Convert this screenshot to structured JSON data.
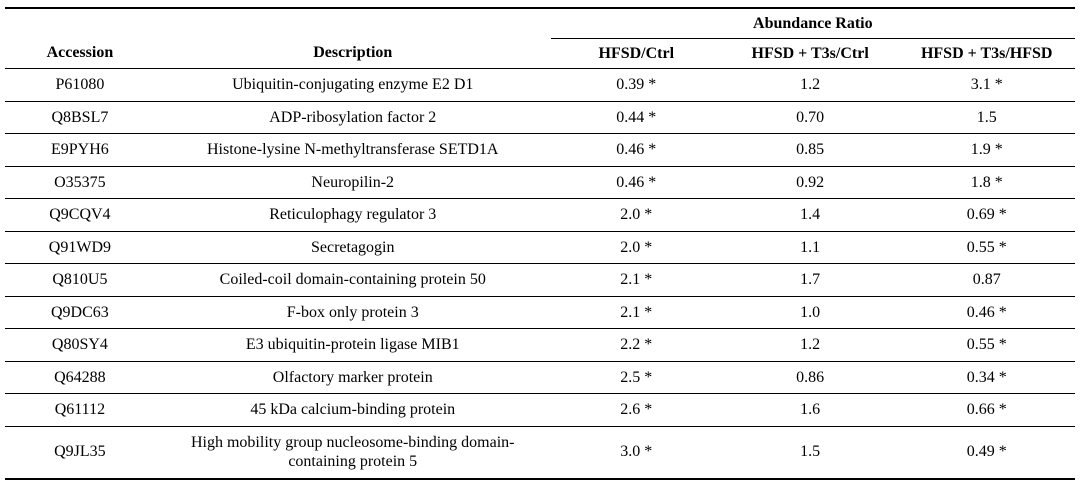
{
  "table": {
    "group_header": "Abundance Ratio",
    "columns": [
      "Accession",
      "Description",
      "HFSD/Ctrl",
      "HFSD + T3s/Ctrl",
      "HFSD + T3s/HFSD"
    ],
    "rows": [
      {
        "accession": "P61080",
        "description": "Ubiquitin-conjugating enzyme E2 D1",
        "hfsd_ctrl": "0.39 *",
        "hfsd_t3s_ctrl": "1.2",
        "hfsd_t3s_hfsd": "3.1 *"
      },
      {
        "accession": "Q8BSL7",
        "description": "ADP-ribosylation factor 2",
        "hfsd_ctrl": "0.44 *",
        "hfsd_t3s_ctrl": "0.70",
        "hfsd_t3s_hfsd": "1.5"
      },
      {
        "accession": "E9PYH6",
        "description": "Histone-lysine N-methyltransferase SETD1A",
        "hfsd_ctrl": "0.46 *",
        "hfsd_t3s_ctrl": "0.85",
        "hfsd_t3s_hfsd": "1.9 *"
      },
      {
        "accession": "O35375",
        "description": "Neuropilin-2",
        "hfsd_ctrl": "0.46 *",
        "hfsd_t3s_ctrl": "0.92",
        "hfsd_t3s_hfsd": "1.8 *"
      },
      {
        "accession": "Q9CQV4",
        "description": "Reticulophagy regulator 3",
        "hfsd_ctrl": "2.0 *",
        "hfsd_t3s_ctrl": "1.4",
        "hfsd_t3s_hfsd": "0.69 *"
      },
      {
        "accession": "Q91WD9",
        "description": "Secretagogin",
        "hfsd_ctrl": "2.0 *",
        "hfsd_t3s_ctrl": "1.1",
        "hfsd_t3s_hfsd": "0.55 *"
      },
      {
        "accession": "Q810U5",
        "description": "Coiled-coil domain-containing protein 50",
        "hfsd_ctrl": "2.1 *",
        "hfsd_t3s_ctrl": "1.7",
        "hfsd_t3s_hfsd": "0.87"
      },
      {
        "accession": "Q9DC63",
        "description": "F-box only protein 3",
        "hfsd_ctrl": "2.1 *",
        "hfsd_t3s_ctrl": "1.0",
        "hfsd_t3s_hfsd": "0.46 *"
      },
      {
        "accession": "Q80SY4",
        "description": "E3 ubiquitin-protein ligase MIB1",
        "hfsd_ctrl": "2.2 *",
        "hfsd_t3s_ctrl": "1.2",
        "hfsd_t3s_hfsd": "0.55 *"
      },
      {
        "accession": "Q64288",
        "description": "Olfactory marker protein",
        "hfsd_ctrl": "2.5 *",
        "hfsd_t3s_ctrl": "0.86",
        "hfsd_t3s_hfsd": "0.34 *"
      },
      {
        "accession": "Q61112",
        "description": "45 kDa calcium-binding protein",
        "hfsd_ctrl": "2.6 *",
        "hfsd_t3s_ctrl": "1.6",
        "hfsd_t3s_hfsd": "0.66 *"
      },
      {
        "accession": "Q9JL35",
        "description": "High mobility group nucleosome-binding domain-containing protein 5",
        "hfsd_ctrl": "3.0 *",
        "hfsd_t3s_ctrl": "1.5",
        "hfsd_t3s_hfsd": "0.49 *"
      }
    ]
  }
}
